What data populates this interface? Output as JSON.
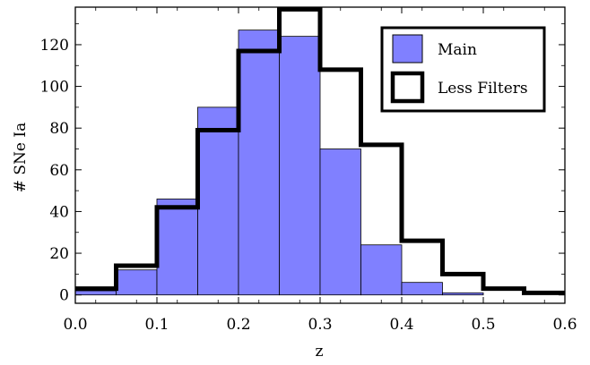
{
  "chart_data": {
    "type": "bar",
    "xlabel": "z",
    "ylabel": "# SNe Ia",
    "xlim": [
      0.0,
      0.6
    ],
    "ylim": [
      -4,
      138
    ],
    "x_ticks": [
      "0.0",
      "0.1",
      "0.2",
      "0.3",
      "0.4",
      "0.5",
      "0.6"
    ],
    "y_ticks": [
      "0",
      "20",
      "40",
      "60",
      "80",
      "100",
      "120"
    ],
    "bin_edges": [
      0.0,
      0.05,
      0.1,
      0.15,
      0.2,
      0.25,
      0.3,
      0.35,
      0.4,
      0.45,
      0.5,
      0.55,
      0.6
    ],
    "series": [
      {
        "name": "Main",
        "style": "filled",
        "color": "#8080ff",
        "values": [
          2,
          12,
          46,
          90,
          127,
          124,
          70,
          24,
          6,
          1,
          0,
          0
        ]
      },
      {
        "name": "Less Filters",
        "style": "thick-outline",
        "color": "#000000",
        "values": [
          3,
          14,
          42,
          79,
          117,
          137,
          108,
          72,
          26,
          10,
          3,
          1
        ]
      }
    ],
    "legend_position": "top-right",
    "grid": false
  }
}
